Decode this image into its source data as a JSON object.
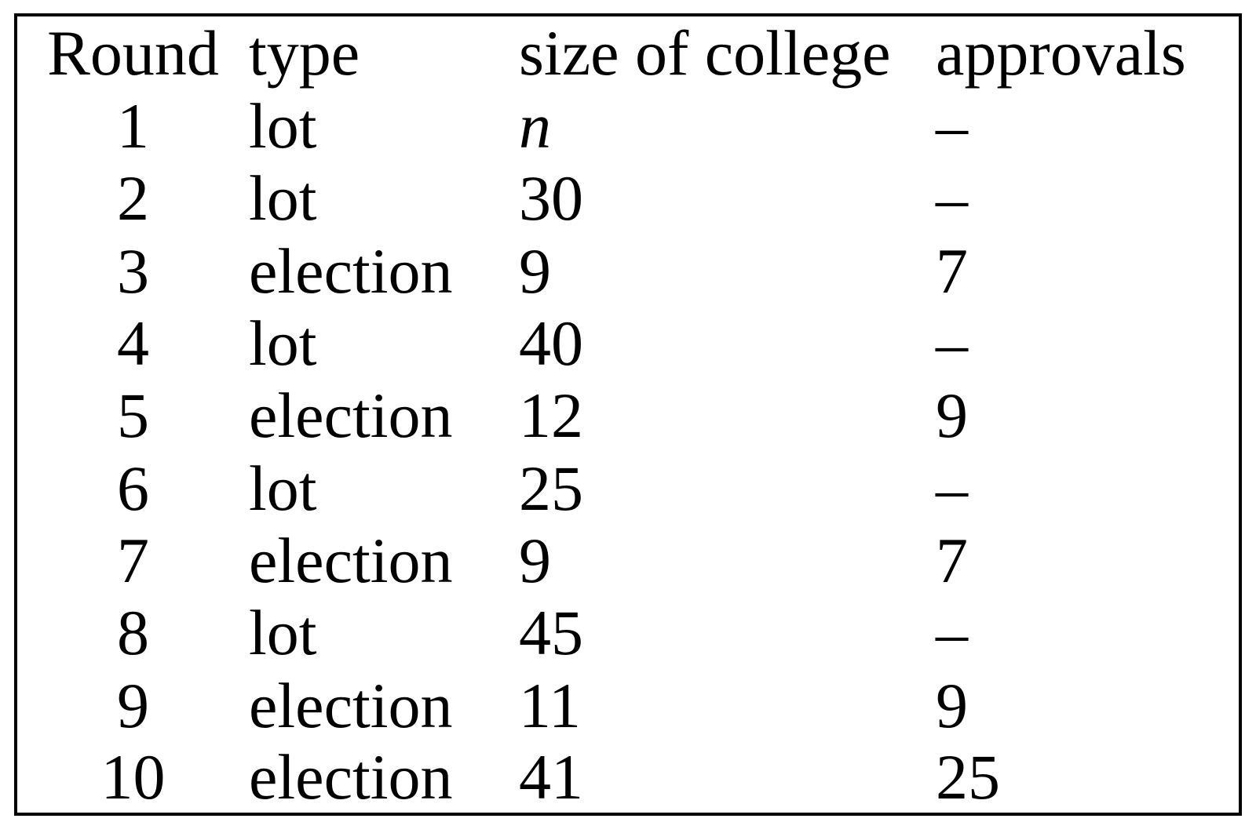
{
  "table": {
    "headers": {
      "round": "Round",
      "type": "type",
      "size": "size of college",
      "approvals": "approvals"
    },
    "rows": [
      {
        "round": "1",
        "type": "lot",
        "size": "n",
        "approvals": "–"
      },
      {
        "round": "2",
        "type": "lot",
        "size": "30",
        "approvals": "–"
      },
      {
        "round": "3",
        "type": "election",
        "size": "9",
        "approvals": "7"
      },
      {
        "round": "4",
        "type": "lot",
        "size": "40",
        "approvals": "–"
      },
      {
        "round": "5",
        "type": "election",
        "size": "12",
        "approvals": "9"
      },
      {
        "round": "6",
        "type": "lot",
        "size": "25",
        "approvals": "–"
      },
      {
        "round": "7",
        "type": "election",
        "size": "9",
        "approvals": "7"
      },
      {
        "round": "8",
        "type": "lot",
        "size": "45",
        "approvals": "–"
      },
      {
        "round": "9",
        "type": "election",
        "size": "11",
        "approvals": "9"
      },
      {
        "round": "10",
        "type": "election",
        "size": "41",
        "approvals": "25"
      }
    ]
  },
  "colors": {
    "background": "#ffffff",
    "text": "#000000",
    "border": "#000000"
  }
}
